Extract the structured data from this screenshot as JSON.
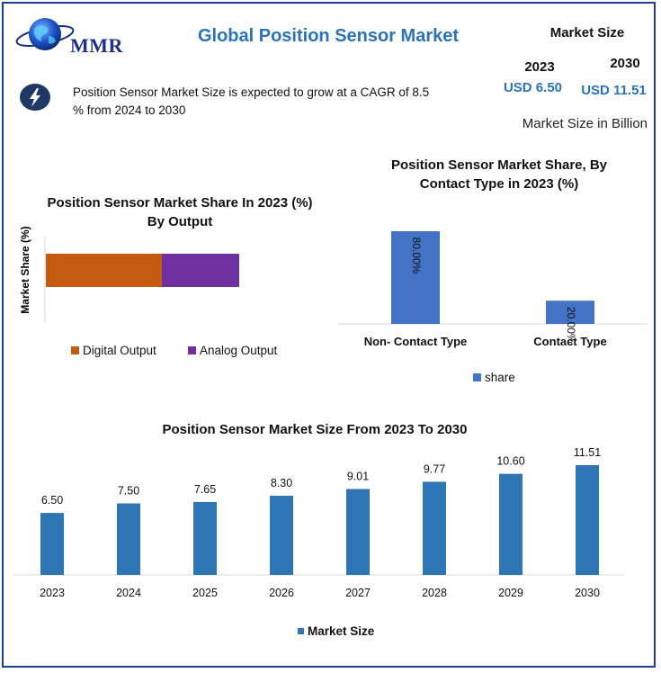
{
  "header": {
    "logo_text": "MMR",
    "title": "Global Position Sensor Market",
    "market_size_title": "Market Size",
    "year_start": "2023",
    "year_end": "2030",
    "value_start": "USD 6.50",
    "value_end": "USD 11.51",
    "unit_note": "Market Size in Billion",
    "cagr_text": "Position Sensor Market Size is expected to grow at a CAGR of 8.5 % from 2024  to 2030"
  },
  "colors": {
    "title_blue": "#2a73b8",
    "digital": "#c55a11",
    "analog": "#7030a0",
    "share": "#4472c4",
    "market": "#2e75b6"
  },
  "chart_data": [
    {
      "type": "bar",
      "orientation": "horizontal-stacked",
      "title": "Position Sensor Market Share In 2023 (%) By Output",
      "ylabel": "Market Share (%)",
      "series": [
        {
          "name": "Digital Output",
          "values": [
            60
          ]
        },
        {
          "name": "Analog Output",
          "values": [
            40
          ]
        }
      ],
      "legend": "bottom"
    },
    {
      "type": "bar",
      "title": "Position Sensor Market Share, By Contact Type in 2023 (%)",
      "categories": [
        "Non- Contact Type",
        "Contact Type"
      ],
      "series": [
        {
          "name": "share",
          "values": [
            80.0,
            20.0
          ],
          "labels": [
            "80.00%",
            "20.00%"
          ]
        }
      ],
      "ylim": [
        0,
        100
      ],
      "legend": "bottom"
    },
    {
      "type": "bar",
      "title": "Position Sensor Market Size From 2023 To 2030",
      "categories": [
        "2023",
        "2024",
        "2025",
        "2026",
        "2027",
        "2028",
        "2029",
        "2030"
      ],
      "series": [
        {
          "name": "Market Size",
          "values": [
            6.5,
            7.5,
            7.65,
            8.3,
            9.01,
            9.77,
            10.6,
            11.51
          ],
          "labels": [
            "6.50",
            "7.50",
            "7.65",
            "8.30",
            "9.01",
            "9.77",
            "10.60",
            "11.51"
          ]
        }
      ],
      "ylim": [
        0,
        13
      ],
      "legend": "bottom"
    }
  ]
}
